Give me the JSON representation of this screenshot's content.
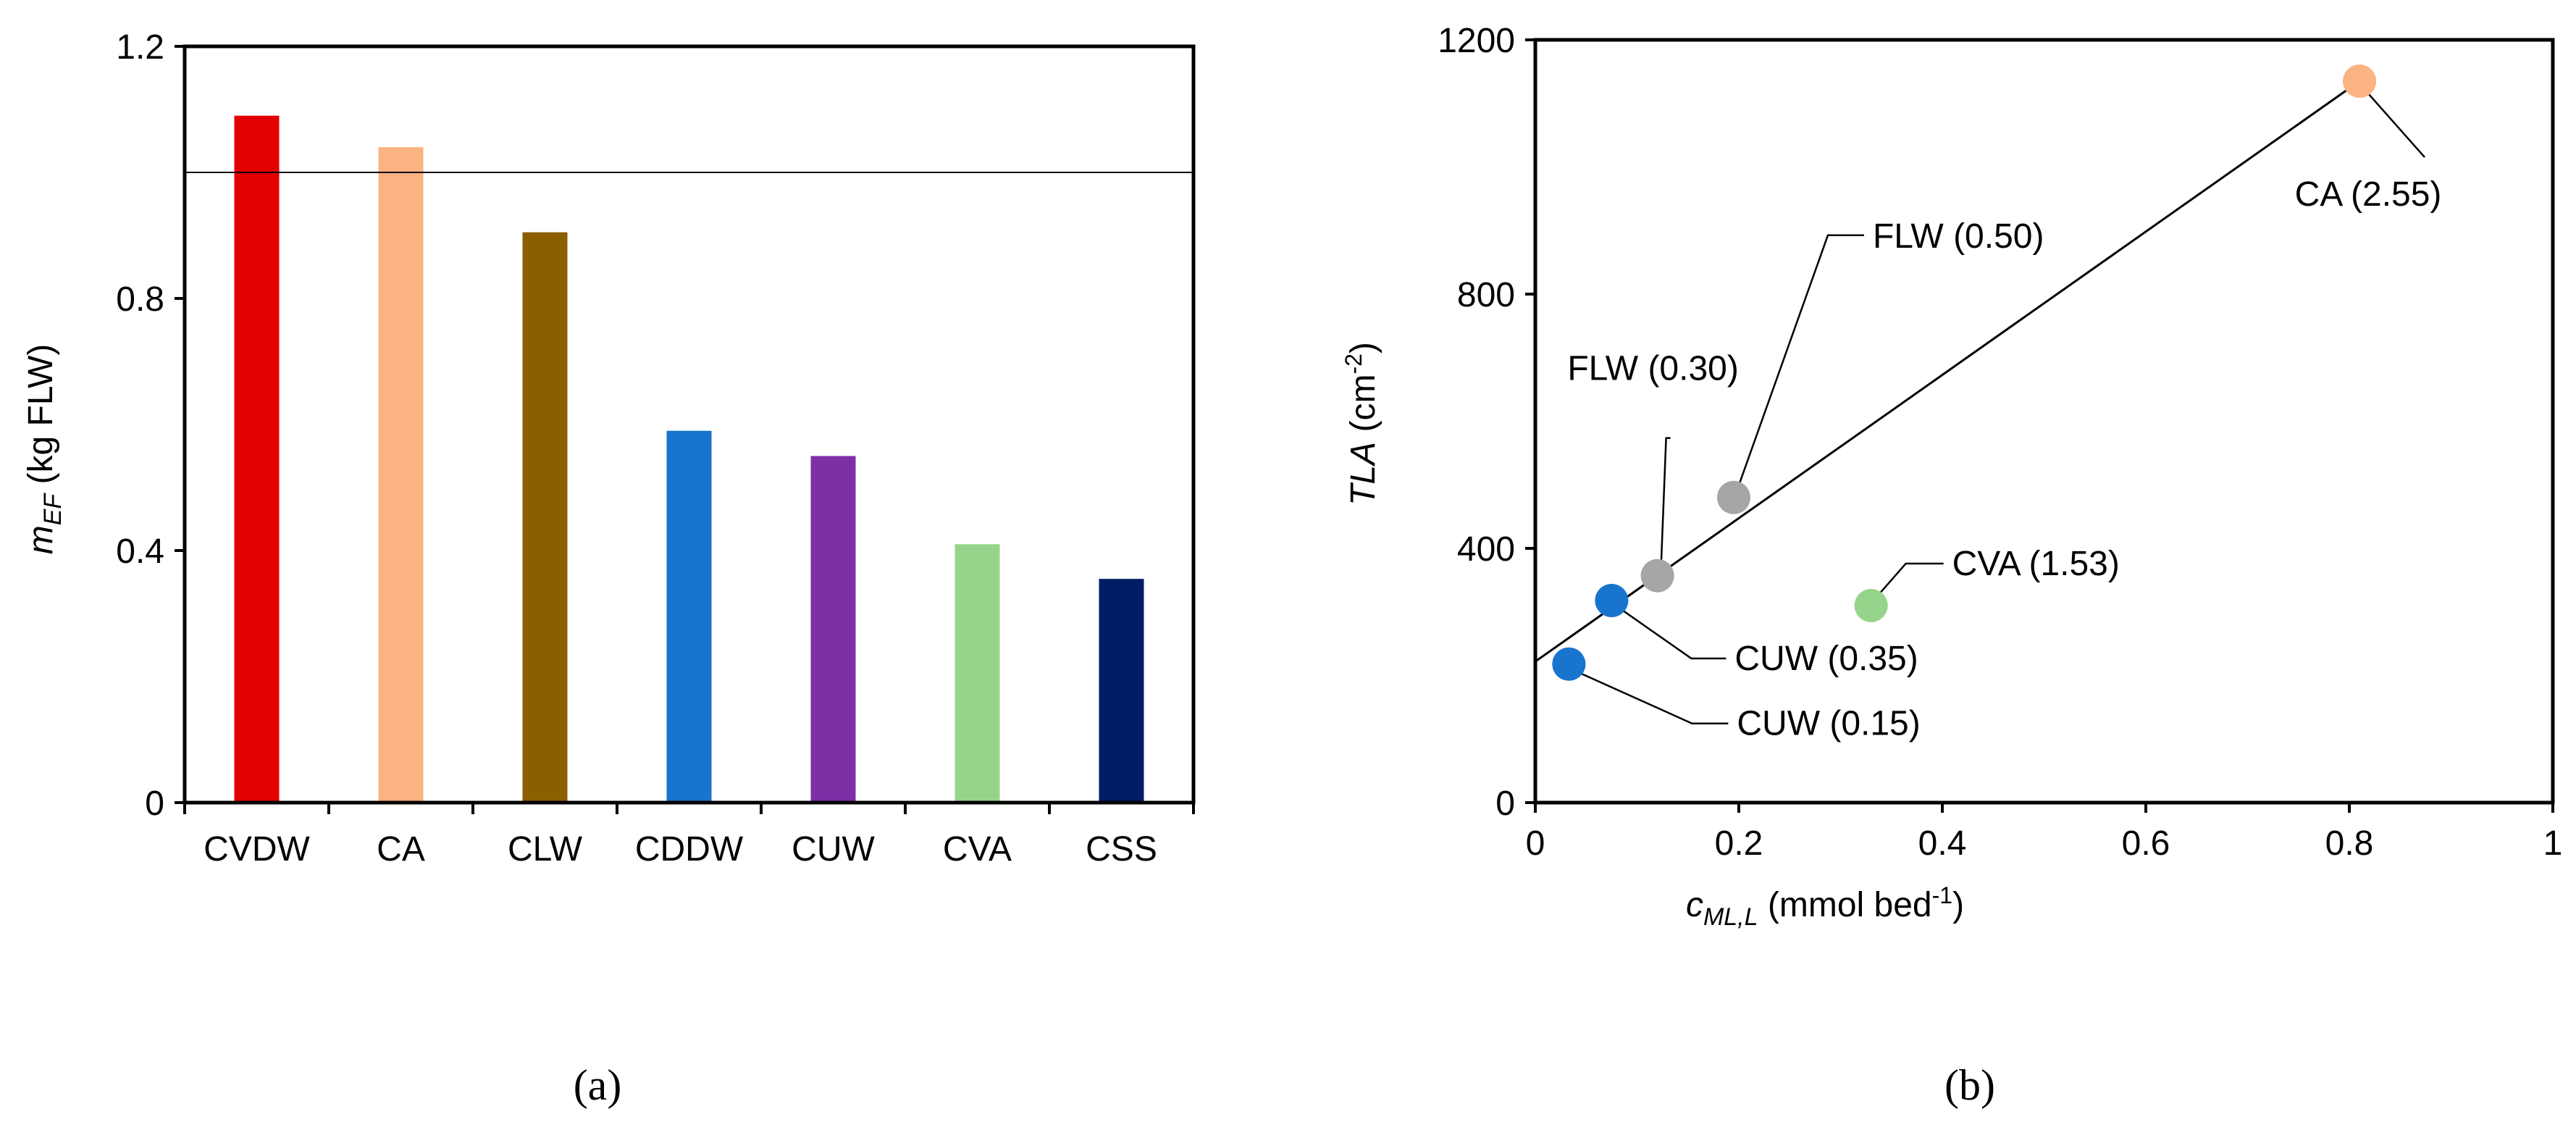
{
  "chart_data": [
    {
      "panel": "(a)",
      "type": "bar",
      "categories": [
        "CVDW",
        "CA",
        "CLW",
        "CDDW",
        "CUW",
        "CVA",
        "CSS"
      ],
      "values": [
        1.09,
        1.04,
        0.905,
        0.59,
        0.55,
        0.41,
        0.355
      ],
      "colors": [
        "#E30000",
        "#FBB382",
        "#8B5E00",
        "#1874CD",
        "#7F2FA5",
        "#97D48B",
        "#001C63"
      ],
      "ylabel_main": "m",
      "ylabel_sub": "EF",
      "ylabel_rest": " (kg FLW)",
      "ylim": [
        0,
        1.2
      ],
      "yticks": [
        0,
        0.4,
        0.8,
        1.2
      ],
      "ytick_labels": [
        "0",
        "0.4",
        "0.8",
        "1.2"
      ],
      "reference_line": 1.0
    },
    {
      "panel": "(b)",
      "type": "scatter",
      "points": [
        {
          "x": 0.033,
          "y": 218,
          "color": "#1874CD",
          "label": "CUW (0.15)"
        },
        {
          "x": 0.075,
          "y": 318,
          "color": "#1874CD",
          "label": "CUW (0.35)"
        },
        {
          "x": 0.12,
          "y": 357,
          "color": "#A6A6A6",
          "label": "FLW (0.30)"
        },
        {
          "x": 0.195,
          "y": 480,
          "color": "#A6A6A6",
          "label": "FLW (0.50)"
        },
        {
          "x": 0.33,
          "y": 310,
          "color": "#97D48B",
          "label": "CVA (1.53)"
        },
        {
          "x": 0.81,
          "y": 1135,
          "color": "#FBB382",
          "label": "CA (2.55)"
        }
      ],
      "trendline": {
        "x0": 0,
        "y0": 222,
        "x1": 0.81,
        "y1": 1135
      },
      "xlim": [
        0,
        1
      ],
      "ylim": [
        0,
        1200
      ],
      "xticks": [
        0,
        0.2,
        0.4,
        0.6,
        0.8,
        1
      ],
      "xtick_labels": [
        "0",
        "0.2",
        "0.4",
        "0.6",
        "0.8",
        "1"
      ],
      "yticks": [
        0,
        400,
        800,
        1200
      ],
      "ytick_labels": [
        "0",
        "400",
        "800",
        "1200"
      ],
      "ylabel_main": "TLA",
      "ylabel_rest": " (cm",
      "ylabel_sup": "-2",
      "ylabel_close": ")",
      "xlabel_main": "c",
      "xlabel_sub": "ML,L",
      "xlabel_rest": " (mmol bed",
      "xlabel_sup": "-1",
      "xlabel_close": ")"
    }
  ]
}
